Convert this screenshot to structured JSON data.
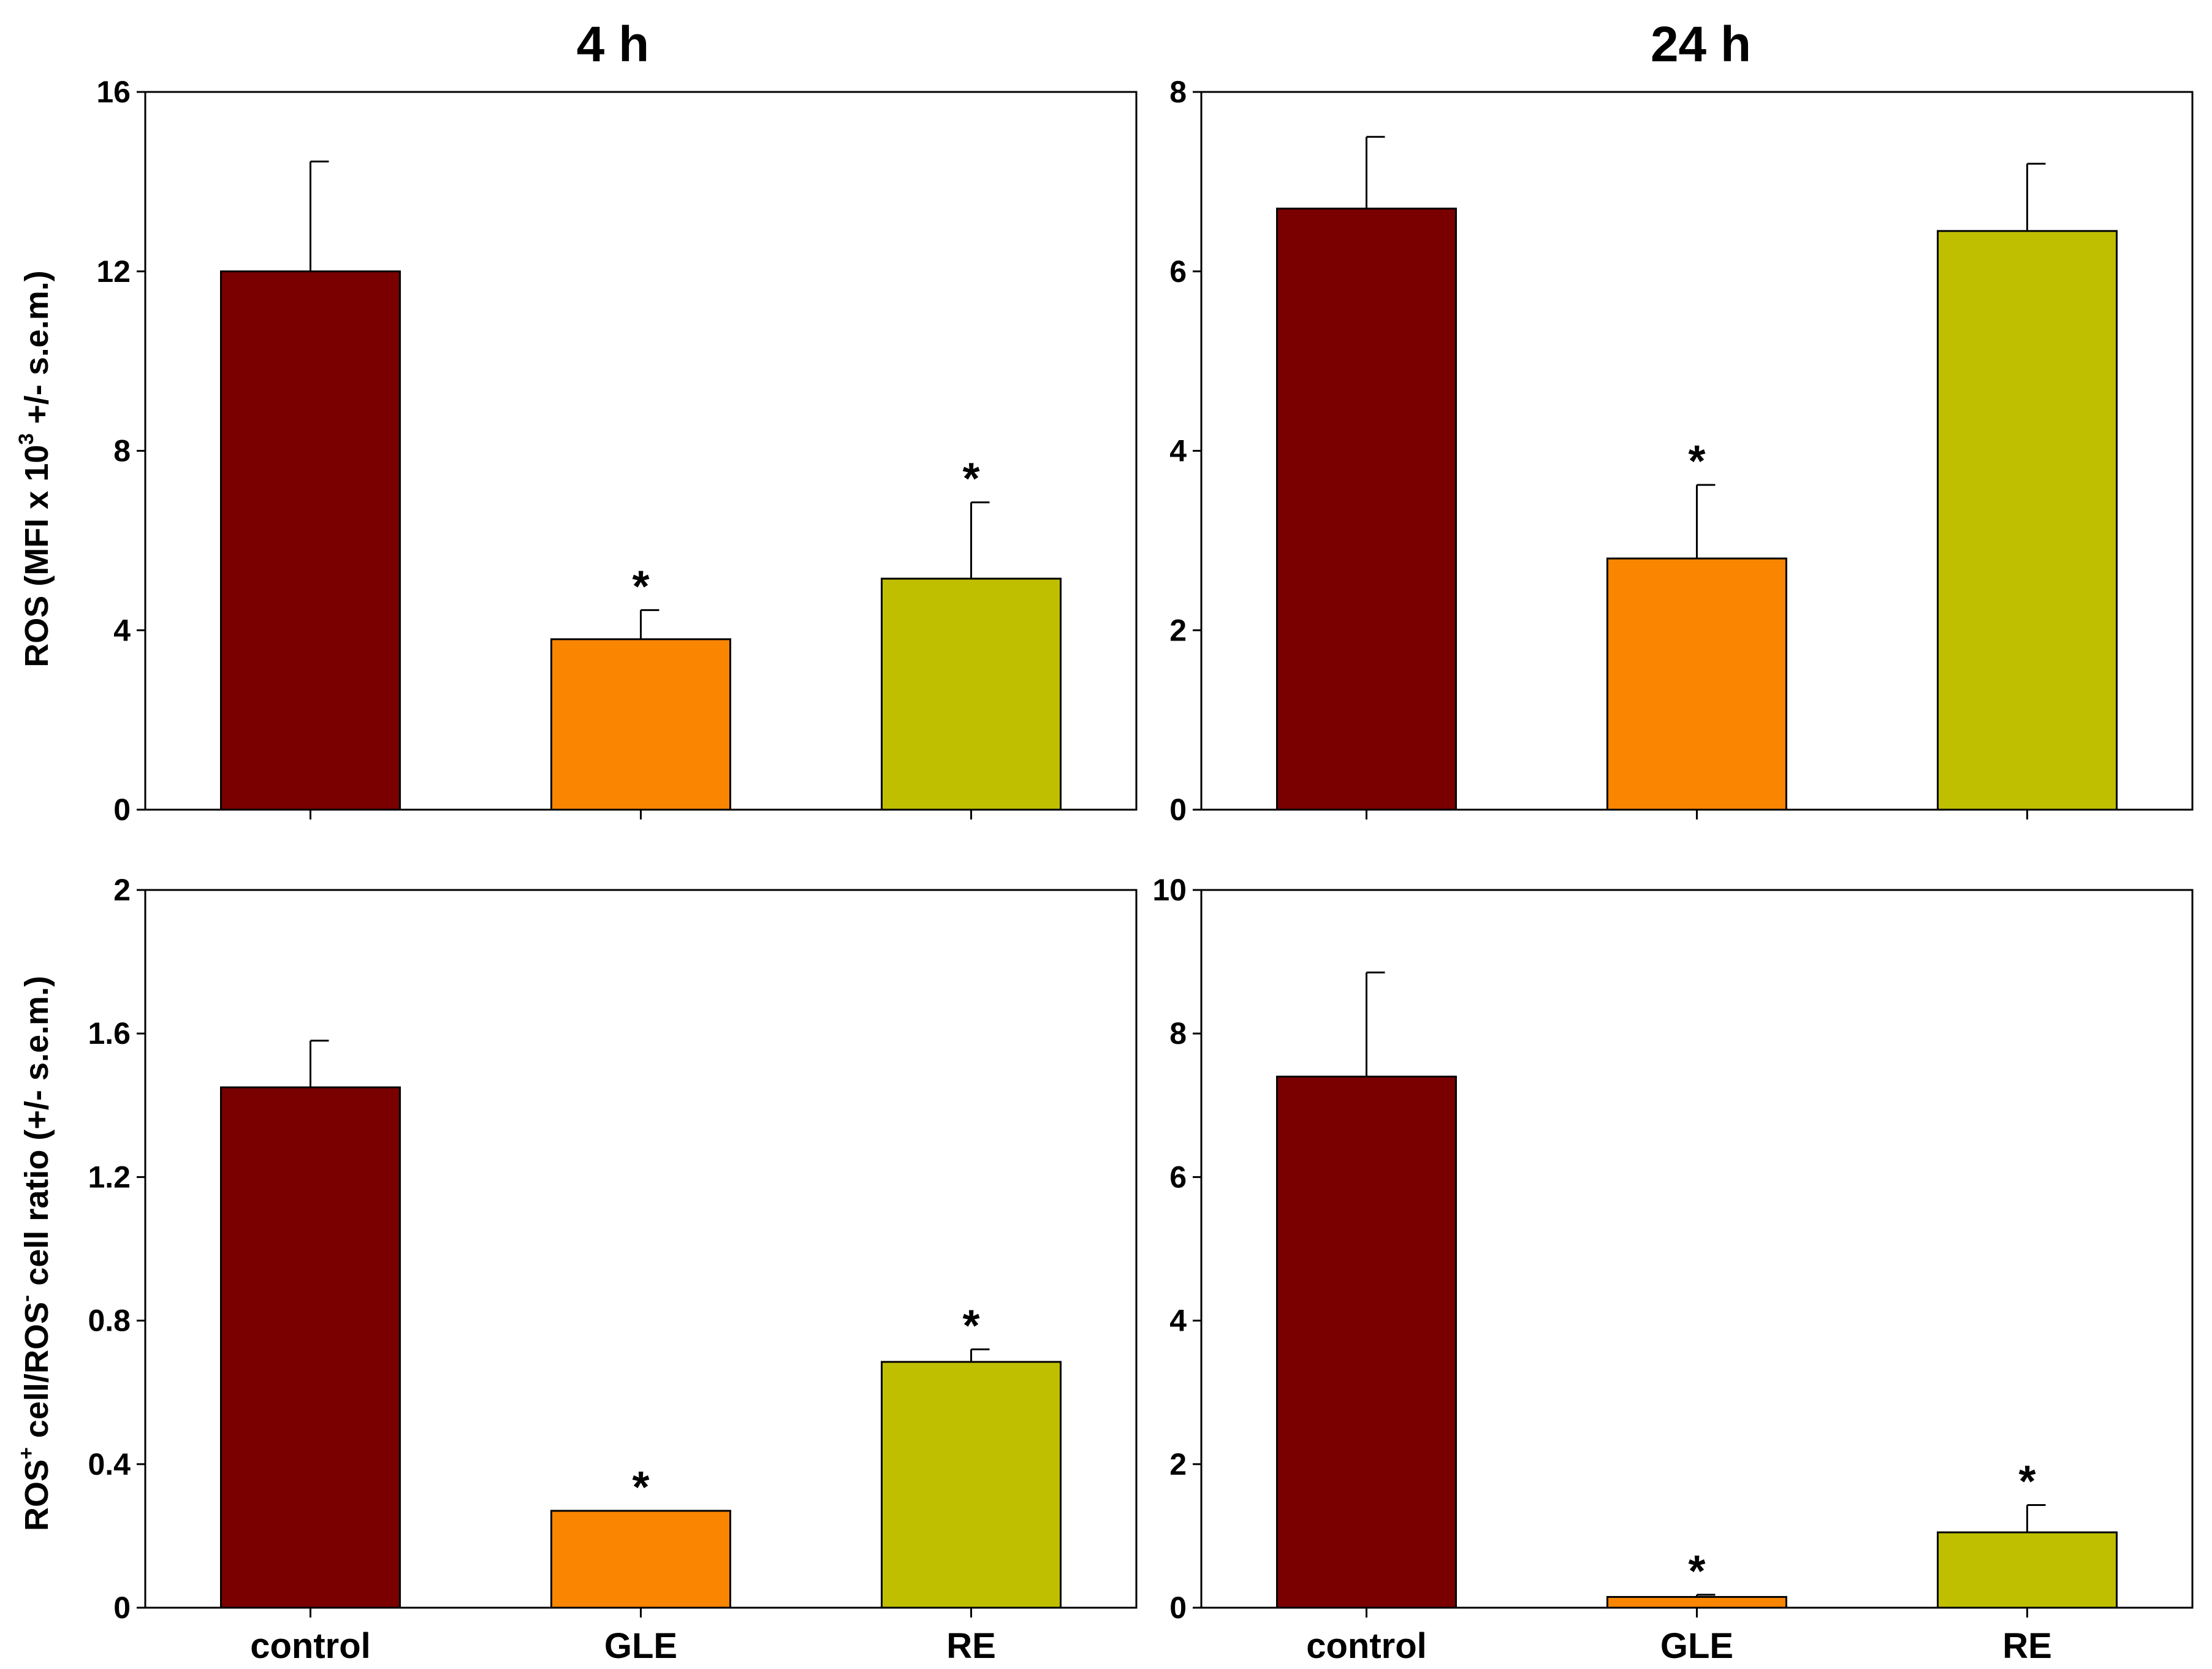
{
  "figure": {
    "column_titles": [
      "4 h",
      "24 h"
    ],
    "row_ylabels": [
      {
        "main": "ROS (MFI x 10",
        "sup": "3",
        "rest": " +/- s.e.m.)"
      },
      {
        "main_a": "ROS",
        "sup_a": "+",
        "main_b": " cell/ROS",
        "sup_b": "-",
        "main_c": "  cell ratio (+/- s.e.m.)"
      }
    ]
  },
  "colors": {
    "control": "#7a0000",
    "GLE": "#fa8500",
    "RE": "#bfbf00",
    "axis": "#000000"
  },
  "chart_data": [
    {
      "type": "bar",
      "panel": "top-left",
      "title": "4 h",
      "ylabel": "ROS (MFI x 10^3 +/- s.e.m.)",
      "categories": [
        "control",
        "GLE",
        "RE"
      ],
      "values": [
        12.0,
        3.8,
        5.15
      ],
      "errors": [
        2.45,
        0.65,
        1.7
      ],
      "significant": [
        false,
        true,
        true
      ],
      "significance_marker": "*",
      "ylim": [
        0,
        16
      ],
      "yticks": [
        0,
        4,
        8,
        12,
        16
      ],
      "ytick_labels": [
        "0",
        "4",
        "8",
        "12",
        "16"
      ],
      "show_x_labels": false
    },
    {
      "type": "bar",
      "panel": "top-right",
      "title": "24 h",
      "categories": [
        "control",
        "GLE",
        "RE"
      ],
      "values": [
        6.7,
        2.8,
        6.45
      ],
      "errors": [
        0.8,
        0.82,
        0.75
      ],
      "significant": [
        false,
        true,
        false
      ],
      "significance_marker": "*",
      "ylim": [
        0,
        8
      ],
      "yticks": [
        0,
        2,
        4,
        6,
        8
      ],
      "ytick_labels": [
        "0",
        "2",
        "4",
        "6",
        "8"
      ],
      "show_x_labels": false
    },
    {
      "type": "bar",
      "panel": "bottom-left",
      "ylabel": "ROS+ cell/ROS- cell ratio (+/- s.e.m.)",
      "categories": [
        "control",
        "GLE",
        "RE"
      ],
      "values": [
        1.45,
        0.27,
        0.685
      ],
      "errors": [
        0.13,
        0.0,
        0.035
      ],
      "significant": [
        false,
        true,
        true
      ],
      "significance_marker": "*",
      "ylim": [
        0,
        2
      ],
      "yticks": [
        0,
        0.4,
        0.8,
        1.2,
        1.6,
        2
      ],
      "ytick_labels": [
        "0",
        "0.4",
        "0.8",
        "1.2",
        "1.6",
        "2"
      ],
      "show_x_labels": true
    },
    {
      "type": "bar",
      "panel": "bottom-right",
      "categories": [
        "control",
        "GLE",
        "RE"
      ],
      "values": [
        7.4,
        0.15,
        1.05
      ],
      "errors": [
        1.45,
        0.03,
        0.38
      ],
      "significant": [
        false,
        true,
        true
      ],
      "significance_marker": "*",
      "ylim": [
        0,
        10
      ],
      "yticks": [
        0,
        2,
        4,
        6,
        8,
        10
      ],
      "ytick_labels": [
        "0",
        "2",
        "4",
        "6",
        "8",
        "10"
      ],
      "show_x_labels": true
    }
  ]
}
